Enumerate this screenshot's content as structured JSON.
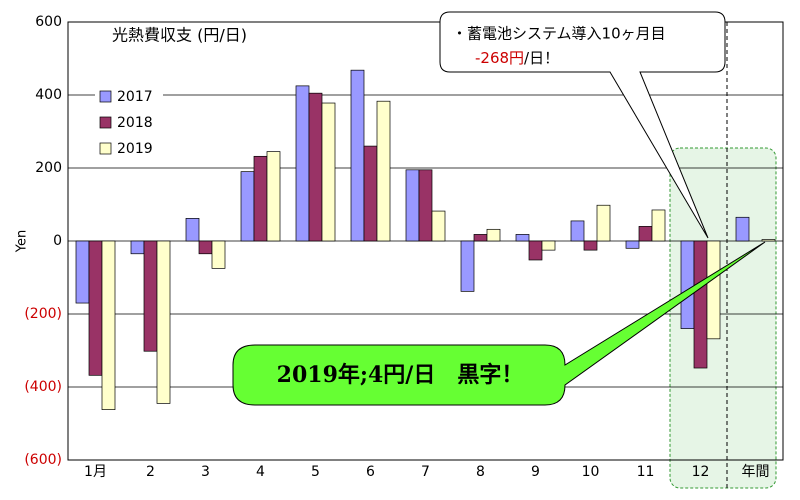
{
  "chart_data": {
    "type": "bar",
    "title": "光熱費収支 (円/日)",
    "y_label": "Yen",
    "categories": [
      "1月",
      "2",
      "3",
      "4",
      "5",
      "6",
      "7",
      "8",
      "9",
      "10",
      "11",
      "12",
      "年間"
    ],
    "series": [
      {
        "name": "2017",
        "color": "#9999ff",
        "values": [
          -170,
          -35,
          62,
          190,
          425,
          468,
          195,
          -138,
          18,
          55,
          -20,
          -240,
          65
        ]
      },
      {
        "name": "2018",
        "color": "#993366",
        "values": [
          -368,
          -302,
          -35,
          232,
          405,
          260,
          195,
          18,
          -52,
          -25,
          40,
          -348,
          null
        ]
      },
      {
        "name": "2019",
        "color": "#ffffcc",
        "values": [
          -462,
          -445,
          -75,
          245,
          378,
          383,
          82,
          32,
          -25,
          98,
          85,
          -268,
          4
        ]
      }
    ],
    "ylim": [
      -600,
      600
    ],
    "yticks": [
      {
        "value": -600,
        "label": "(600)"
      },
      {
        "value": -400,
        "label": "(400)"
      },
      {
        "value": -200,
        "label": "(200)"
      },
      0,
      200,
      400,
      600
    ],
    "negative_tick_color": "#cc0000",
    "grid": true,
    "legend_position": "upper-left",
    "callout": {
      "line1": "・蓄電池システム導入10ヶ月目",
      "line2_red": "-268円",
      "line2_rest": "/日！"
    },
    "highlight": "2019年;4円/日　黒字！"
  }
}
